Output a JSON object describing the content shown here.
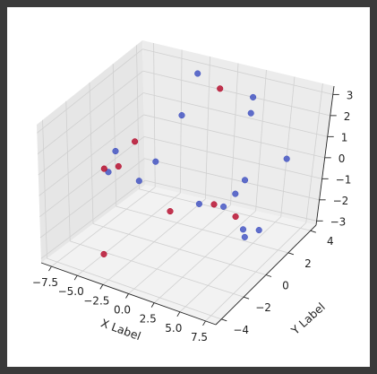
{
  "chart_data": {
    "type": "scatter",
    "projection": "3d",
    "xlabel": "X Label",
    "ylabel": "Y Label",
    "zlabel": "",
    "xlim": [
      -8.5,
      8.5
    ],
    "ylim": [
      -4.5,
      4.5
    ],
    "zlim": [
      -3.2,
      3.4
    ],
    "x_ticks": [
      -7.5,
      -5.0,
      -2.5,
      0.0,
      2.5,
      5.0,
      7.5
    ],
    "x_tick_labels": [
      "−7.5",
      "−5.0",
      "−2.5",
      "0.0",
      "2.5",
      "5.0",
      "7.5"
    ],
    "y_ticks": [
      -4,
      -2,
      0,
      2,
      4
    ],
    "y_tick_labels": [
      "−4",
      "−2",
      "0",
      "2",
      "4"
    ],
    "z_ticks": [
      -3,
      -2,
      -1,
      0,
      1,
      2,
      3
    ],
    "z_tick_labels": [
      "−3",
      "−2",
      "−1",
      "0",
      "1",
      "2",
      "3"
    ],
    "grid": true,
    "colors": {
      "red": "#b40426",
      "blue": "#3b4cc0"
    },
    "points": [
      {
        "x": -3.5,
        "y": -3.5,
        "z": -2.4,
        "c": "red"
      },
      {
        "x": -2.2,
        "y": 3.2,
        "z": 3.2,
        "c": "blue"
      },
      {
        "x": -1.2,
        "y": 4.2,
        "z": 2.2,
        "c": "red"
      },
      {
        "x": -5.5,
        "y": 1.0,
        "z": 0.6,
        "c": "red"
      },
      {
        "x": -2.8,
        "y": 2.5,
        "z": 1.5,
        "c": "blue"
      },
      {
        "x": 1.5,
        "y": 4.5,
        "z": 2.0,
        "c": "blue"
      },
      {
        "x": 1.5,
        "y": 4.4,
        "z": 1.3,
        "c": "blue"
      },
      {
        "x": 6.5,
        "y": 3.0,
        "z": 0.4,
        "c": "blue"
      },
      {
        "x": -5.8,
        "y": -1.0,
        "z": 0.0,
        "c": "blue"
      },
      {
        "x": -6.2,
        "y": -1.0,
        "z": 0.1,
        "c": "red"
      },
      {
        "x": -5.4,
        "y": -0.5,
        "z": 0.1,
        "c": "red"
      },
      {
        "x": -6.0,
        "y": -0.2,
        "z": 0.6,
        "c": "blue"
      },
      {
        "x": -3.0,
        "y": 0.5,
        "z": 0.2,
        "c": "blue"
      },
      {
        "x": -4.0,
        "y": 0.0,
        "z": -0.6,
        "c": "blue"
      },
      {
        "x": 3.2,
        "y": 2.6,
        "z": -0.8,
        "c": "blue"
      },
      {
        "x": 2.8,
        "y": 2.2,
        "z": -1.3,
        "c": "blue"
      },
      {
        "x": -1.0,
        "y": 0.0,
        "z": -1.6,
        "c": "red"
      },
      {
        "x": 1.2,
        "y": 0.5,
        "z": -1.2,
        "c": "blue"
      },
      {
        "x": 2.5,
        "y": 0.6,
        "z": -1.1,
        "c": "red"
      },
      {
        "x": 3.2,
        "y": 0.8,
        "z": -1.2,
        "c": "blue"
      },
      {
        "x": 4.4,
        "y": 0.8,
        "z": -1.5,
        "c": "red"
      },
      {
        "x": 5.5,
        "y": 0.5,
        "z": -1.8,
        "c": "blue"
      },
      {
        "x": 5.9,
        "y": 0.3,
        "z": -2.0,
        "c": "blue"
      },
      {
        "x": 6.9,
        "y": 0.6,
        "z": -1.7,
        "c": "blue"
      }
    ]
  }
}
